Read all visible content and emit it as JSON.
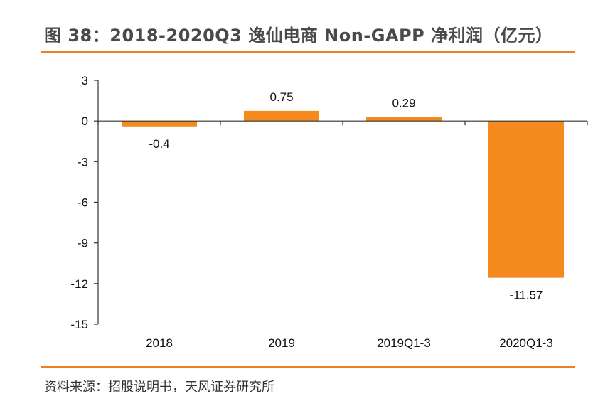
{
  "title": "图 38：2018-2020Q3 逸仙电商 Non-GAPP 净利润（亿元）",
  "source": "资料来源：招股说明书，天风证券研究所",
  "colors": {
    "bar": "#f58a1f",
    "accent_rule": "#f07f22",
    "axis": "#333333"
  },
  "chart_data": {
    "type": "bar",
    "categories": [
      "2018",
      "2019",
      "2019Q1-3",
      "2020Q1-3"
    ],
    "values": [
      -0.4,
      0.75,
      0.29,
      -11.57
    ],
    "data_labels": [
      "-0.4",
      "0.75",
      "0.29",
      "-11.57"
    ],
    "title": "图 38：2018-2020Q3 逸仙电商 Non-GAPP 净利润（亿元）",
    "xlabel": "",
    "ylabel": "",
    "ylim": [
      -15,
      3
    ],
    "yticks": [
      3,
      0,
      -3,
      -6,
      -9,
      -12,
      -15
    ],
    "grid": false,
    "legend": "none"
  }
}
